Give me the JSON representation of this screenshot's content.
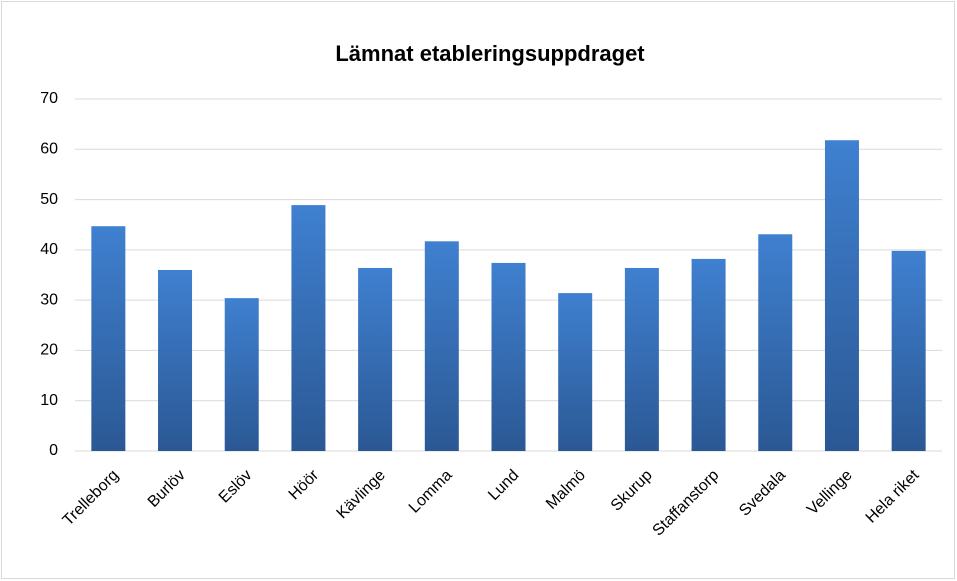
{
  "chart_data": {
    "type": "bar",
    "title": "Lämnat etableringsuppdraget",
    "categories": [
      "Trelleborg",
      "Burlöv",
      "Eslöv",
      "Höör",
      "Kävlinge",
      "Lomma",
      "Lund",
      "Malmö",
      "Skurup",
      "Staffanstorp",
      "Svedala",
      "Vellinge",
      "Hela riket"
    ],
    "values": [
      44.7,
      36.0,
      30.4,
      48.9,
      36.4,
      41.7,
      37.4,
      31.4,
      36.4,
      38.2,
      43.1,
      61.8,
      39.8
    ],
    "color": "#3f80d0",
    "ylim": [
      0,
      70
    ],
    "yticks": [
      0,
      10,
      20,
      30,
      40,
      50,
      60,
      70
    ],
    "grid": true
  }
}
